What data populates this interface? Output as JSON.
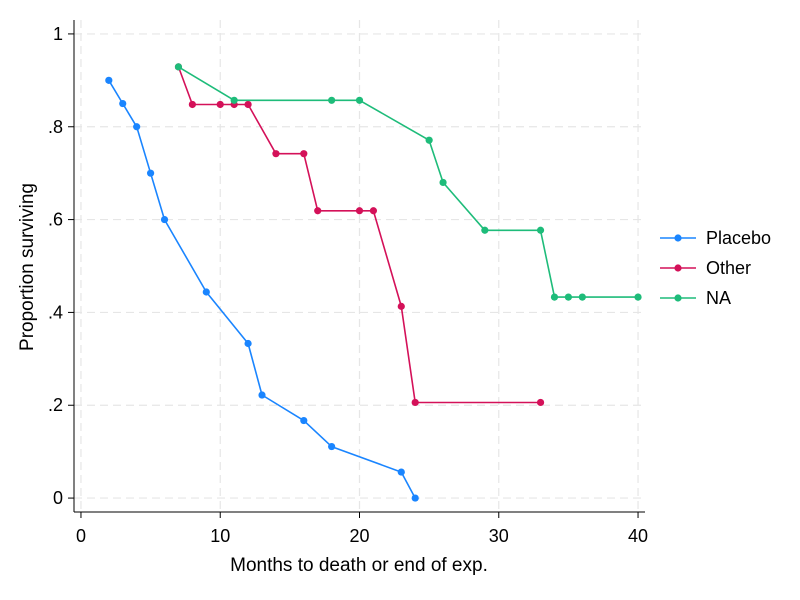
{
  "chart_data": {
    "type": "line",
    "xlabel": "Months to death or end of exp.",
    "ylabel": "Proportion surviving",
    "xlim": [
      -0.5,
      40.5
    ],
    "ylim": [
      -0.03,
      1.03
    ],
    "x_ticks": [
      0,
      10,
      20,
      30,
      40
    ],
    "x_tick_labels": [
      "0",
      "10",
      "20",
      "30",
      "40"
    ],
    "y_ticks": [
      0,
      0.2,
      0.4,
      0.6,
      0.8,
      1
    ],
    "y_tick_labels": [
      "0",
      ".2",
      ".4",
      ".6",
      ".8",
      "1"
    ],
    "grid": true,
    "legend_position": "right",
    "series": [
      {
        "name": "Placebo",
        "color": "#1a85ff",
        "x": [
          2,
          3,
          4,
          5,
          6,
          9,
          12,
          13,
          16,
          18,
          23,
          24
        ],
        "y": [
          0.9,
          0.85,
          0.8,
          0.7,
          0.6,
          0.444,
          0.333,
          0.222,
          0.167,
          0.111,
          0.056,
          0
        ]
      },
      {
        "name": "Other",
        "color": "#d41159",
        "x": [
          7,
          8,
          10,
          11,
          12,
          14,
          16,
          17,
          20,
          21,
          23,
          24,
          33
        ],
        "y": [
          0.929,
          0.848,
          0.848,
          0.848,
          0.848,
          0.742,
          0.742,
          0.619,
          0.619,
          0.619,
          0.413,
          0.206,
          0.206
        ]
      },
      {
        "name": "NA",
        "color": "#1ebc7a",
        "x": [
          7,
          11,
          18,
          20,
          25,
          26,
          29,
          33,
          34,
          35,
          36,
          40
        ],
        "y": [
          0.929,
          0.857,
          0.857,
          0.857,
          0.771,
          0.68,
          0.577,
          0.577,
          0.433,
          0.433,
          0.433,
          0.433
        ]
      }
    ]
  }
}
